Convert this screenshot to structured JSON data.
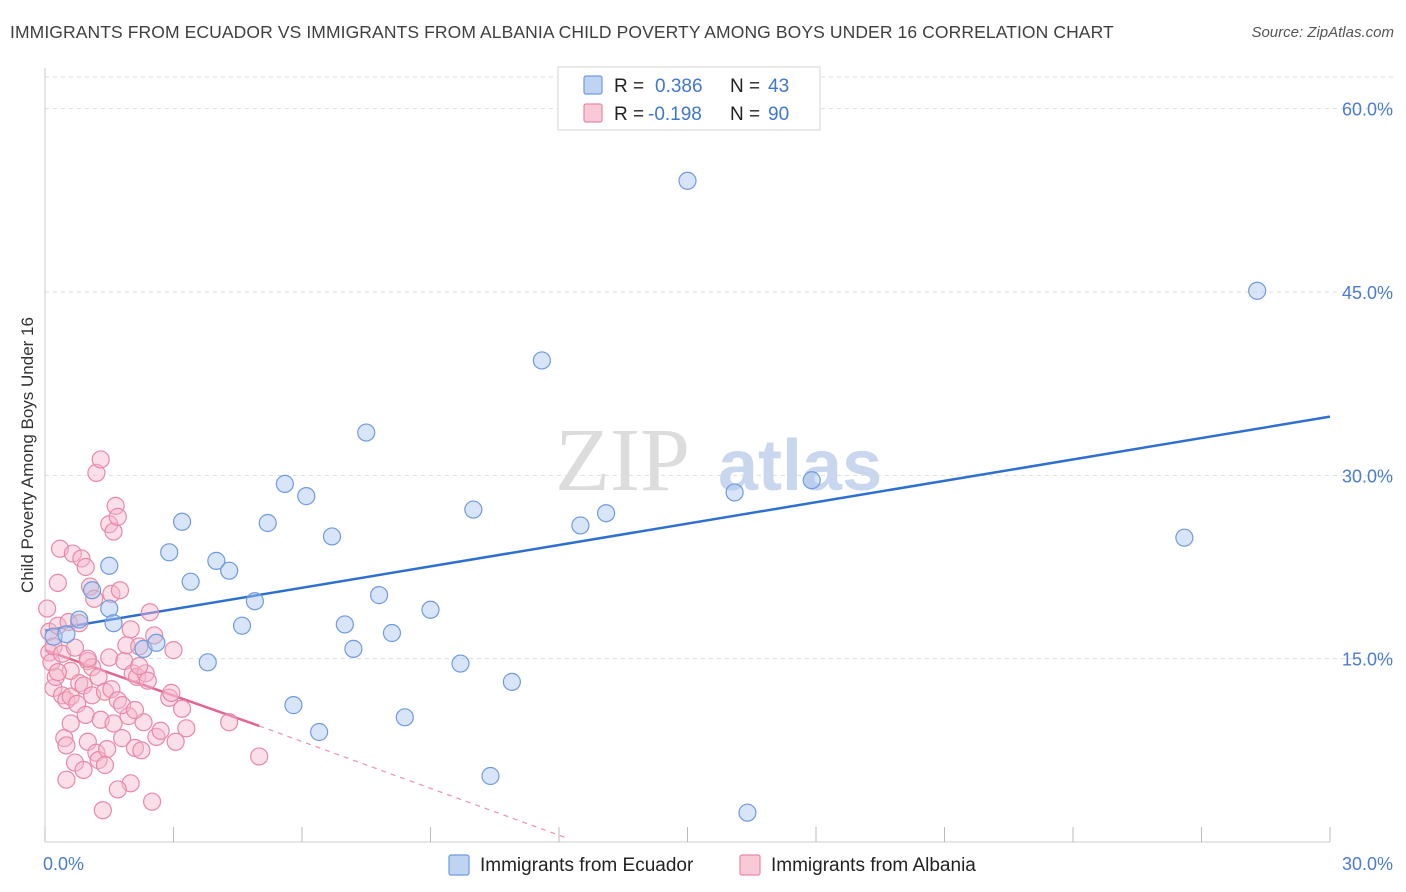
{
  "title": "IMMIGRANTS FROM ECUADOR VS IMMIGRANTS FROM ALBANIA CHILD POVERTY AMONG BOYS UNDER 16 CORRELATION CHART",
  "source": "Source: ZipAtlas.com",
  "watermark": {
    "zip": "ZIP",
    "atlas": "atlas"
  },
  "colors": {
    "ecuador_fill": "#a9c4ee",
    "ecuador_stroke": "#6f9be0",
    "ecuador_line": "#2f6fcf",
    "albania_fill": "#f5b8cb",
    "albania_stroke": "#e889a6",
    "albania_line": "#e0668f",
    "grid": "#dddddd",
    "tick_text": "#4a7cd1"
  },
  "chart_data": {
    "type": "scatter",
    "title": "IMMIGRANTS FROM ECUADOR VS IMMIGRANTS FROM ALBANIA CHILD POVERTY AMONG BOYS UNDER 16 CORRELATION CHART",
    "xlabel": "",
    "ylabel": "Child Poverty Among Boys Under 16",
    "xlim": [
      0,
      30
    ],
    "ylim": [
      0,
      63
    ],
    "x_tick_labels": [
      "0.0%",
      "30.0%"
    ],
    "y_ticks": [
      15,
      30,
      45,
      60
    ],
    "y_tick_labels": [
      "15.0%",
      "30.0%",
      "45.0%",
      "60.0%"
    ],
    "grid": true,
    "legend_placement": "top-center",
    "legend": [
      {
        "r_label": "R =",
        "r_value": "0.386",
        "n_label": "N =",
        "n_value": "43"
      },
      {
        "r_label": "R =",
        "r_value": "-0.198",
        "n_label": "N =",
        "n_value": "90"
      }
    ],
    "series": [
      {
        "name": "Immigrants from Ecuador",
        "trend": {
          "x": [
            0,
            30
          ],
          "y": [
            17.3,
            34.8
          ],
          "dashed_extension": false
        },
        "points": [
          [
            0.2,
            16.8
          ],
          [
            0.5,
            17.0
          ],
          [
            0.8,
            18.2
          ],
          [
            1.1,
            20.6
          ],
          [
            1.5,
            19.1
          ],
          [
            1.5,
            22.6
          ],
          [
            1.6,
            17.9
          ],
          [
            2.3,
            15.8
          ],
          [
            2.6,
            16.3
          ],
          [
            2.9,
            23.7
          ],
          [
            3.2,
            26.2
          ],
          [
            3.4,
            21.3
          ],
          [
            3.8,
            14.7
          ],
          [
            4.0,
            23.0
          ],
          [
            4.3,
            22.2
          ],
          [
            4.6,
            17.7
          ],
          [
            4.9,
            19.7
          ],
          [
            5.2,
            26.1
          ],
          [
            5.6,
            29.3
          ],
          [
            5.8,
            11.2
          ],
          [
            6.1,
            28.3
          ],
          [
            6.4,
            9.0
          ],
          [
            6.7,
            25.0
          ],
          [
            7.0,
            17.8
          ],
          [
            7.2,
            15.8
          ],
          [
            7.5,
            33.5
          ],
          [
            7.8,
            20.2
          ],
          [
            8.1,
            17.1
          ],
          [
            8.4,
            10.2
          ],
          [
            9.0,
            19.0
          ],
          [
            9.7,
            14.6
          ],
          [
            10.0,
            27.2
          ],
          [
            10.4,
            5.4
          ],
          [
            10.9,
            13.1
          ],
          [
            11.6,
            39.4
          ],
          [
            12.5,
            25.9
          ],
          [
            13.1,
            26.9
          ],
          [
            15.0,
            54.1
          ],
          [
            16.1,
            28.6
          ],
          [
            16.4,
            2.4
          ],
          [
            17.9,
            29.6
          ],
          [
            26.6,
            24.9
          ],
          [
            28.3,
            45.1
          ]
        ]
      },
      {
        "name": "Immigrants from Albania",
        "trend": {
          "x": [
            0,
            5.0
          ],
          "y": [
            15.7,
            9.5
          ],
          "dashed_extension": true,
          "extension_x": [
            5.0,
            12.2
          ],
          "extension_y": [
            9.5,
            0.3
          ]
        },
        "points": [
          [
            0.05,
            19.1
          ],
          [
            0.1,
            17.2
          ],
          [
            0.1,
            15.5
          ],
          [
            0.15,
            14.7
          ],
          [
            0.2,
            12.6
          ],
          [
            0.2,
            16.0
          ],
          [
            0.25,
            13.5
          ],
          [
            0.3,
            21.2
          ],
          [
            0.3,
            17.7
          ],
          [
            0.35,
            24.0
          ],
          [
            0.4,
            15.4
          ],
          [
            0.4,
            12.0
          ],
          [
            0.45,
            8.5
          ],
          [
            0.5,
            11.6
          ],
          [
            0.5,
            5.1
          ],
          [
            0.55,
            18.0
          ],
          [
            0.6,
            14.0
          ],
          [
            0.6,
            11.9
          ],
          [
            0.65,
            23.6
          ],
          [
            0.7,
            6.5
          ],
          [
            0.7,
            15.9
          ],
          [
            0.75,
            11.3
          ],
          [
            0.8,
            13.0
          ],
          [
            0.8,
            17.9
          ],
          [
            0.85,
            23.2
          ],
          [
            0.9,
            12.8
          ],
          [
            0.95,
            10.4
          ],
          [
            0.95,
            22.5
          ],
          [
            1.0,
            14.8
          ],
          [
            1.0,
            8.2
          ],
          [
            1.05,
            20.9
          ],
          [
            1.1,
            14.3
          ],
          [
            1.1,
            12.0
          ],
          [
            1.15,
            19.9
          ],
          [
            1.2,
            30.2
          ],
          [
            1.2,
            7.3
          ],
          [
            1.25,
            13.5
          ],
          [
            1.25,
            6.7
          ],
          [
            1.3,
            31.3
          ],
          [
            1.3,
            10.0
          ],
          [
            1.35,
            2.6
          ],
          [
            1.4,
            12.3
          ],
          [
            1.45,
            7.6
          ],
          [
            1.5,
            26.0
          ],
          [
            1.5,
            15.1
          ],
          [
            1.55,
            20.3
          ],
          [
            1.55,
            12.5
          ],
          [
            1.6,
            25.4
          ],
          [
            1.6,
            9.7
          ],
          [
            1.65,
            27.5
          ],
          [
            1.7,
            26.6
          ],
          [
            1.7,
            11.6
          ],
          [
            1.75,
            20.6
          ],
          [
            1.8,
            8.5
          ],
          [
            1.85,
            14.8
          ],
          [
            1.9,
            16.1
          ],
          [
            1.95,
            10.3
          ],
          [
            2.0,
            17.4
          ],
          [
            2.0,
            4.8
          ],
          [
            2.05,
            13.8
          ],
          [
            2.1,
            7.7
          ],
          [
            2.15,
            13.5
          ],
          [
            2.2,
            16.0
          ],
          [
            2.25,
            7.5
          ],
          [
            2.3,
            9.8
          ],
          [
            2.35,
            13.8
          ],
          [
            2.4,
            13.2
          ],
          [
            2.45,
            18.8
          ],
          [
            2.5,
            3.3
          ],
          [
            2.55,
            16.9
          ],
          [
            2.6,
            8.6
          ],
          [
            2.7,
            9.1
          ],
          [
            2.9,
            11.8
          ],
          [
            2.95,
            12.2
          ],
          [
            3.0,
            15.7
          ],
          [
            3.05,
            8.2
          ],
          [
            3.2,
            10.9
          ],
          [
            3.3,
            9.3
          ],
          [
            4.3,
            9.8
          ],
          [
            5.0,
            7.0
          ],
          [
            0.3,
            13.9
          ],
          [
            0.6,
            9.7
          ],
          [
            1.0,
            15.0
          ],
          [
            1.4,
            6.3
          ],
          [
            1.8,
            11.2
          ],
          [
            2.2,
            14.4
          ],
          [
            0.5,
            7.9
          ],
          [
            0.9,
            5.9
          ],
          [
            1.7,
            4.3
          ],
          [
            2.1,
            10.8
          ]
        ]
      }
    ]
  },
  "bottom_legend": [
    {
      "label": "Immigrants from Ecuador"
    },
    {
      "label": "Immigrants from Albania"
    }
  ]
}
